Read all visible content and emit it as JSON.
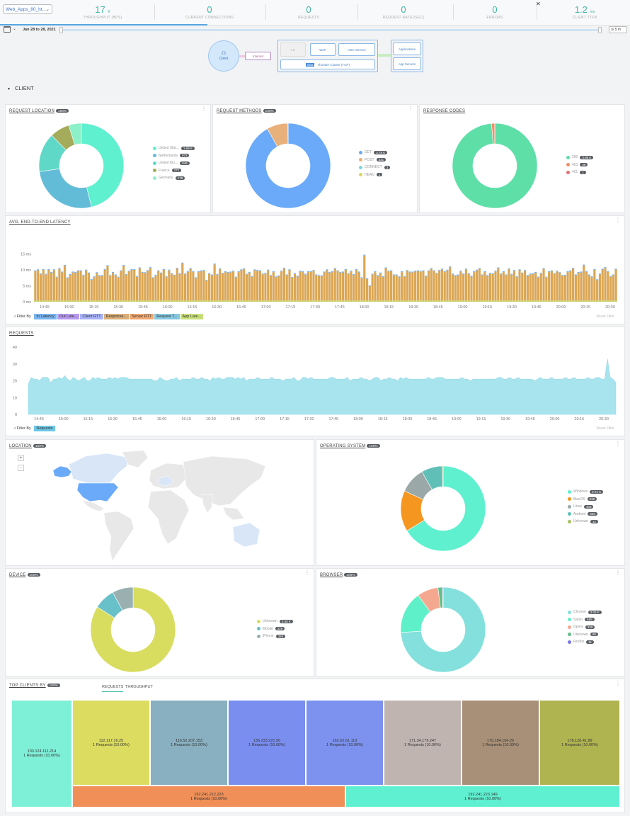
{
  "header": {
    "app_selector": "Web_Apps_80_ht...",
    "metrics": [
      {
        "value": "17",
        "unit": "K",
        "label": "THROUGHPUT (BPS)"
      },
      {
        "value": "0",
        "unit": "",
        "label": "CURRENT CONNECTIONS"
      },
      {
        "value": "0",
        "unit": "",
        "label": "REQUESTS"
      },
      {
        "value": "0",
        "unit": "",
        "label": "REQUEST RATE(/SEC)"
      },
      {
        "value": "0",
        "unit": "",
        "label": "ERRORS"
      },
      {
        "value": "1.2",
        "unit": "ms",
        "label": "CLIENT TTFB"
      }
    ]
  },
  "timebar": {
    "date_range": "Jan 28 to 28, 2021",
    "interval": "5 m"
  },
  "topology": {
    "client": "Client",
    "internet": "Internet",
    "lb": "LB",
    "waf": "WAF",
    "adc": "ADC Service",
    "cluster_tag": "Beta",
    "cluster": "Thunder Cluster (TCP)",
    "applications": "Applications",
    "app_servers": "App Servers"
  },
  "section": {
    "title": "CLIENT"
  },
  "request_location": {
    "title": "REQUEST LOCATION",
    "badge": "100%",
    "items": [
      {
        "label": "United Stat...",
        "count": "1.69 K",
        "color": "#5ef0cf"
      },
      {
        "label": "Netherlands",
        "count": "973",
        "color": "#62bcd8"
      },
      {
        "label": "United Kin...",
        "count": "546",
        "color": "#60d8c8"
      },
      {
        "label": "France",
        "count": "272",
        "color": "#a4ab5a"
      },
      {
        "label": "Germany",
        "count": "178",
        "color": "#8cf0c8"
      }
    ],
    "chart_data": {
      "type": "pie",
      "values": [
        1690,
        973,
        546,
        272,
        178
      ]
    }
  },
  "request_methods": {
    "title": "REQUEST METHODS",
    "badge": "100%",
    "items": [
      {
        "label": "GET",
        "count": "3.78 K",
        "color": "#6aaaf8"
      },
      {
        "label": "POST",
        "count": "331",
        "color": "#e8b07a"
      },
      {
        "label": "CONNECT",
        "count": "3",
        "color": "#78d8d8"
      },
      {
        "label": "HEAD",
        "count": "1",
        "color": "#d8d860"
      }
    ],
    "chart_data": {
      "type": "pie",
      "values": [
        3780,
        331,
        3,
        1
      ]
    }
  },
  "response_codes": {
    "title": "RESPONSE CODES",
    "items": [
      {
        "label": "200",
        "count": "3.98 K",
        "color": "#5edfa8"
      },
      {
        "label": "403",
        "count": "48",
        "color": "#f0906a"
      },
      {
        "label": "401",
        "count": "1",
        "color": "#e87070"
      }
    ],
    "chart_data": {
      "type": "pie",
      "values": [
        3980,
        48,
        1
      ]
    }
  },
  "latency": {
    "title": "AVG. END-TO-END LATENCY",
    "filter_label": "Filter By",
    "chips": [
      {
        "label": "In Latency",
        "color": "#7ab4f0"
      },
      {
        "label": "Out Late...",
        "color": "#b89af0"
      },
      {
        "label": "Client RTT",
        "color": "#a8b4f8"
      },
      {
        "label": "Response...",
        "color": "#dbb07a"
      },
      {
        "label": "Server RTT",
        "color": "#f0a870"
      },
      {
        "label": "Request T...",
        "color": "#86c8e0"
      },
      {
        "label": "App Late...",
        "color": "#c8e078"
      }
    ],
    "reset": "Reset Filter",
    "chart_data": {
      "type": "bar",
      "y_ticks": [
        "15 ms",
        "10 ms",
        "5 ms",
        "0 ms"
      ],
      "ylim": [
        0,
        18
      ],
      "x_ticks": [
        "14:45",
        "15:00",
        "15:15",
        "15:30",
        "15:45",
        "16:00",
        "16:15",
        "16:30",
        "16:45",
        "17:00",
        "17:15",
        "17:30",
        "17:45",
        "18:00",
        "18:15",
        "18:30",
        "18:45",
        "19:00",
        "19:15",
        "19:30",
        "19:45",
        "20:00",
        "20:15",
        "20:30"
      ],
      "values": [
        9.6,
        9.9,
        8.6,
        10.0,
        8.5,
        10.0,
        9.1,
        9.9,
        7.6,
        10.3,
        9.2,
        11.3,
        7.4,
        8.4,
        9.2,
        9.1,
        9.6,
        9.6,
        8.2,
        9.8,
        8.9,
        6.9,
        7.7,
        9.0,
        8.1,
        8.1,
        10.0,
        11.2,
        8.1,
        9.1,
        8.3,
        7.6,
        9.6,
        11.3,
        8.4,
        9.5,
        10.0,
        10.0,
        7.8,
        10.5,
        9.1,
        9.0,
        9.7,
        10.6,
        7.4,
        8.2,
        9.6,
        8.9,
        10.0,
        7.7,
        9.8,
        8.7,
        8.2,
        10.4,
        8.7,
        12.0,
        8.6,
        9.4,
        10.3,
        9.4,
        7.4,
        9.3,
        9.6,
        9.7,
        6.6,
        8.7,
        8.3,
        11.7,
        8.5,
        10.2,
        8.8,
        9.3,
        9.1,
        9.2,
        9.5,
        7.6,
        9.3,
        9.9,
        10.2,
        8.5,
        9.1,
        7.8,
        9.9,
        9.7,
        9.6,
        8.6,
        8.8,
        9.8,
        8.1,
        9.3,
        7.7,
        8.0,
        9.5,
        10.4,
        8.3,
        9.9,
        7.5,
        8.7,
        7.9,
        9.5,
        9.3,
        8.5,
        9.3,
        9.4,
        9.7,
        8.3,
        8.1,
        8.0,
        9.2,
        9.9,
        9.1,
        9.3,
        10.3,
        9.6,
        9.1,
        9.2,
        10.0,
        8.7,
        9.5,
        8.4,
        10.0,
        9.2,
        7.4,
        14.5,
        7.1,
        4.9,
        8.5,
        9.3,
        8.1,
        8.9,
        7.8,
        10.5,
        9.5,
        9.6,
        8.3,
        8.3,
        7.7,
        9.3,
        7.8,
        9.7,
        9.2,
        9.2,
        9.5,
        9.6,
        9.4,
        9.6,
        7.9,
        9.6,
        10.3,
        9.6,
        8.8,
        9.7,
        10.1,
        9.3,
        9.8,
        10.8,
        8.6,
        8.1,
        8.3,
        9.5,
        8.6,
        10.1,
        8.7,
        7.9,
        9.3,
        9.8,
        10.3,
        8.3,
        9.3,
        8.1,
        8.8,
        8.7,
        9.5,
        10.5,
        8.6,
        9.3,
        8.3,
        10.2,
        8.5,
        9.7,
        7.7,
        9.9,
        8.9,
        9.7,
        8.1,
        8.6,
        8.7,
        9.1,
        7.6,
        8.8,
        10.3,
        7.6,
        9.3,
        9.6,
        8.7,
        9.5,
        9.0,
        8.1,
        8.2,
        9.3,
        9.6,
        10.4,
        8.3,
        9.1,
        9.2,
        11.4,
        9.4,
        8.3,
        7.7,
        10.0,
        6.8,
        8.6,
        10.1,
        10.6,
        9.4,
        7.8,
        8.3,
        10.1
      ]
    }
  },
  "requests": {
    "title": "REQUESTS",
    "filter_label": "Filter By",
    "chip": "Requests",
    "reset": "Reset Filter",
    "chart_data": {
      "type": "area",
      "y_ticks": [
        "40",
        "30",
        "20",
        "10",
        "0"
      ],
      "ylim": [
        0,
        40
      ],
      "x_ticks": [
        "14:45",
        "15:00",
        "15:15",
        "15:30",
        "15:45",
        "16:00",
        "16:15",
        "16:30",
        "16:45",
        "17:00",
        "17:15",
        "17:30",
        "17:45",
        "18:00",
        "18:15",
        "18:30",
        "18:45",
        "19:00",
        "19:15",
        "19:30",
        "19:45",
        "20:00",
        "20:15",
        "20:30"
      ],
      "values": [
        18,
        22,
        21,
        21,
        20,
        22,
        22,
        22,
        19,
        21,
        21,
        22,
        21,
        23,
        21,
        20,
        22,
        21,
        20,
        21,
        22,
        20,
        20,
        22,
        21,
        22,
        21,
        21,
        21,
        22,
        21,
        22,
        21,
        22,
        22,
        22,
        21,
        21,
        21,
        21,
        21,
        21,
        21,
        21,
        21,
        20,
        20,
        22,
        21,
        20,
        20,
        21,
        21,
        22,
        20,
        21,
        21,
        21,
        21,
        22,
        21,
        21,
        22,
        21,
        21,
        20,
        22,
        21,
        22,
        21,
        21,
        22,
        22,
        22,
        21,
        22,
        21,
        22,
        20,
        21,
        21,
        21,
        22,
        21,
        21,
        21,
        21,
        22,
        21,
        21,
        21,
        20,
        21,
        21,
        21,
        22,
        20,
        20,
        22,
        22,
        21,
        22,
        21,
        21,
        21,
        21,
        21,
        21,
        22,
        22,
        21,
        21,
        21,
        21,
        22,
        20,
        21,
        21,
        21,
        22,
        21,
        21,
        20,
        21,
        22,
        22,
        20,
        21,
        21,
        22,
        21,
        21,
        20,
        22,
        21,
        22,
        21,
        21,
        21,
        21,
        21,
        21,
        21,
        22,
        21,
        21,
        22,
        22,
        22,
        21,
        21,
        21,
        21,
        21,
        21,
        22,
        21,
        21,
        20,
        21,
        21,
        21,
        21,
        21,
        21,
        21,
        21,
        21,
        22,
        22,
        21,
        21,
        22,
        21,
        21,
        22,
        21,
        21,
        21,
        21,
        21,
        20,
        21,
        22,
        21,
        21,
        21,
        22,
        21,
        21,
        21,
        21,
        22,
        21,
        21,
        22,
        21,
        21,
        21,
        21,
        22,
        21,
        21,
        22,
        22,
        21,
        21,
        33,
        22,
        21,
        19
      ]
    }
  },
  "location": {
    "title": "LOCATION",
    "badge": "100%",
    "zoom_in": "+",
    "zoom_out": "-"
  },
  "operating_system": {
    "title": "OPERATING SYSTEM",
    "badge": "100%",
    "items": [
      {
        "label": "Windows",
        "count": "2.71 K",
        "color": "#5ef0cf"
      },
      {
        "label": "MacOS",
        "count": "638",
        "color": "#f59620"
      },
      {
        "label": "Linux",
        "count": "403",
        "color": "#9aa8a8"
      },
      {
        "label": "Android",
        "count": "329",
        "color": "#60c0b8"
      },
      {
        "label": "Unknown",
        "count": "12",
        "color": "#a8c060"
      }
    ],
    "chart_data": {
      "type": "pie",
      "values": [
        2710,
        638,
        403,
        329,
        12
      ]
    }
  },
  "device": {
    "title": "DEVICE",
    "badge": "100%",
    "items": [
      {
        "label": "Unknown",
        "count": "3.45 K",
        "color": "#d8dd60"
      },
      {
        "label": "Mobile",
        "count": "329",
        "color": "#68c0c8"
      },
      {
        "label": "iPhone",
        "count": "326",
        "color": "#9ab0b0"
      }
    ],
    "chart_data": {
      "type": "pie",
      "values": [
        3450,
        329,
        326
      ]
    }
  },
  "browser": {
    "title": "BROWSER",
    "badge": "100%",
    "items": [
      {
        "label": "Chrome",
        "count": "3.03 K",
        "color": "#84e0dc"
      },
      {
        "label": "Safari",
        "count": "658",
        "color": "#5ef0c8"
      },
      {
        "label": "Opera",
        "count": "329",
        "color": "#f5a890"
      },
      {
        "label": "Unknown",
        "count": "69",
        "color": "#60c088"
      },
      {
        "label": "Firefox",
        "count": "11",
        "color": "#7878e8"
      }
    ],
    "chart_data": {
      "type": "pie",
      "values": [
        3030,
        658,
        329,
        69,
        11
      ]
    }
  },
  "top_clients": {
    "title": "TOP CLIENTS BY",
    "badge": "100%",
    "tabs": [
      "REQUESTS",
      "THROUGHPUT"
    ],
    "tiles": [
      {
        "ip": "103.124.111.214",
        "req": "1 Requests (10.00%)",
        "color": "#7ff0d8"
      },
      {
        "ip": "112.117.16.25",
        "req": "1 Requests (10.00%)",
        "color": "#dbdc60"
      },
      {
        "ip": "116.52.207.153",
        "req": "1 Requests (10.00%)",
        "color": "#88b0c0"
      },
      {
        "ip": "136.233.221.50",
        "req": "1 Requests (10.00%)",
        "color": "#7a8ef0"
      },
      {
        "ip": "162.62.61.113",
        "req": "1 Requests (10.00%)",
        "color": "#7c92ee"
      },
      {
        "ip": "171.34.179.247",
        "req": "1 Requests (10.00%)",
        "color": "#c0b4b0"
      },
      {
        "ip": "175.184.164.26",
        "req": "1 Requests (10.00%)",
        "color": "#a89078"
      },
      {
        "ip": "178.128.41.89",
        "req": "1 Requests (10.00%)",
        "color": "#b0b450"
      },
      {
        "ip": "192.241.212.223",
        "req": "1 Requests (10.00%)",
        "color": "#f09058"
      },
      {
        "ip": "192.241.223.149",
        "req": "1 Requests (10.00%)",
        "color": "#5ef0d0"
      }
    ]
  },
  "colors": {
    "accent": "#3fb6a4",
    "bar": "#dba654",
    "area": "#a8e4ee"
  }
}
